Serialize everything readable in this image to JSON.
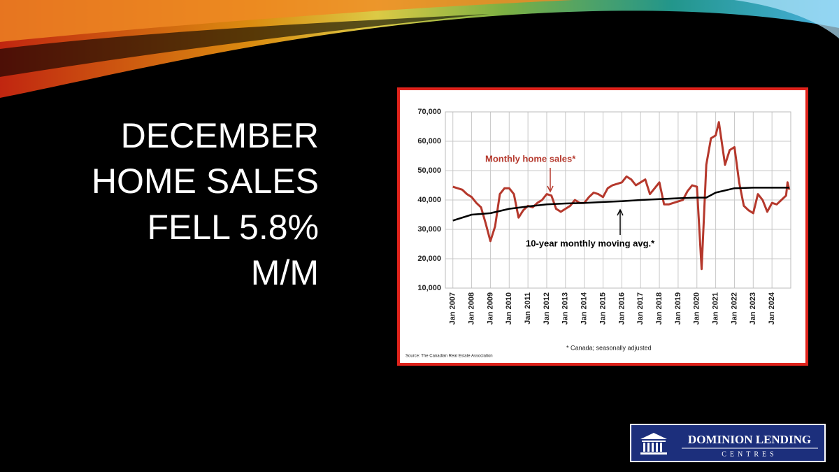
{
  "slide": {
    "title_lines": [
      "DECEMBER",
      "HOME SALES",
      "FELL 5.8%",
      "M/M"
    ]
  },
  "logo": {
    "line1": "DOMINION LENDING",
    "line2": "CENTRES"
  },
  "chart_data": {
    "type": "line",
    "source": "Source: The Canadian Real Estate Association",
    "footnote": "* Canada; seasonally adjusted",
    "annotations": [
      {
        "text": "Monthly home sales*"
      },
      {
        "text": "10-year monthly moving avg.*"
      }
    ],
    "grid": true,
    "xlim": [
      2006.6,
      2025.0
    ],
    "ylim": [
      10000,
      70000
    ],
    "yticks": [
      {
        "value": 10000,
        "label": "10,000"
      },
      {
        "value": 20000,
        "label": "20,000"
      },
      {
        "value": 30000,
        "label": "30,000"
      },
      {
        "value": 40000,
        "label": "40,000"
      },
      {
        "value": 50000,
        "label": "50,000"
      },
      {
        "value": 60000,
        "label": "60,000"
      },
      {
        "value": 70000,
        "label": "70,000"
      }
    ],
    "xticks": [
      {
        "value": 2007,
        "label": "Jan 2007"
      },
      {
        "value": 2008,
        "label": "Jan 2008"
      },
      {
        "value": 2009,
        "label": "Jan 2009"
      },
      {
        "value": 2010,
        "label": "Jan 2010"
      },
      {
        "value": 2011,
        "label": "Jan 2011"
      },
      {
        "value": 2012,
        "label": "Jan 2012"
      },
      {
        "value": 2013,
        "label": "Jan 2013"
      },
      {
        "value": 2014,
        "label": "Jan 2014"
      },
      {
        "value": 2015,
        "label": "Jan 2015"
      },
      {
        "value": 2016,
        "label": "Jan 2016"
      },
      {
        "value": 2017,
        "label": "Jan 2017"
      },
      {
        "value": 2018,
        "label": "Jan 2018"
      },
      {
        "value": 2019,
        "label": "Jan 2019"
      },
      {
        "value": 2020,
        "label": "Jan 2020"
      },
      {
        "value": 2021,
        "label": "Jan 2021"
      },
      {
        "value": 2022,
        "label": "Jan 2022"
      },
      {
        "value": 2023,
        "label": "Jan 2023"
      },
      {
        "value": 2024,
        "label": "Jan 2024"
      }
    ],
    "series": [
      {
        "color": "#b5382c",
        "width": 3,
        "x": [
          2007.0,
          2007.25,
          2007.5,
          2007.75,
          2008.0,
          2008.25,
          2008.5,
          2008.75,
          2009.0,
          2009.25,
          2009.5,
          2009.75,
          2010.0,
          2010.25,
          2010.5,
          2010.75,
          2011.0,
          2011.25,
          2011.5,
          2011.75,
          2012.0,
          2012.25,
          2012.5,
          2012.75,
          2013.0,
          2013.25,
          2013.5,
          2013.75,
          2014.0,
          2014.25,
          2014.5,
          2014.75,
          2015.0,
          2015.25,
          2015.5,
          2015.75,
          2016.0,
          2016.25,
          2016.5,
          2016.75,
          2017.0,
          2017.25,
          2017.5,
          2017.75,
          2018.0,
          2018.25,
          2018.5,
          2018.75,
          2019.0,
          2019.25,
          2019.5,
          2019.75,
          2020.0,
          2020.25,
          2020.5,
          2020.75,
          2021.0,
          2021.17,
          2021.5,
          2021.75,
          2022.0,
          2022.25,
          2022.5,
          2022.75,
          2023.0,
          2023.25,
          2023.5,
          2023.75,
          2024.0,
          2024.25,
          2024.5,
          2024.75,
          2024.83,
          2024.92
        ],
        "values": [
          44500,
          44000,
          43500,
          42000,
          41000,
          39000,
          37500,
          32000,
          26000,
          31000,
          42000,
          44000,
          44000,
          42000,
          34000,
          36500,
          38000,
          37500,
          39000,
          40000,
          42000,
          41500,
          37000,
          36000,
          37000,
          38000,
          40000,
          39000,
          39000,
          41000,
          42500,
          42000,
          41000,
          44000,
          45000,
          45500,
          46000,
          48000,
          47000,
          45000,
          46000,
          47000,
          42000,
          44000,
          46000,
          38500,
          38500,
          39000,
          39500,
          40000,
          43000,
          45000,
          44500,
          16500,
          52000,
          61000,
          62000,
          66500,
          52000,
          57000,
          58000,
          46000,
          38000,
          36500,
          35500,
          42000,
          40000,
          36000,
          39000,
          38500,
          40000,
          41500,
          46000,
          43500
        ]
      },
      {
        "color": "#000000",
        "width": 2.5,
        "x": [
          2007.0,
          2008.0,
          2009.0,
          2010.0,
          2011.0,
          2012.0,
          2013.0,
          2014.0,
          2015.0,
          2016.0,
          2017.0,
          2018.0,
          2019.0,
          2020.0,
          2020.5,
          2021.0,
          2022.0,
          2023.0,
          2024.0,
          2024.92
        ],
        "values": [
          33000,
          35000,
          35500,
          37000,
          37800,
          38500,
          38800,
          39000,
          39300,
          39600,
          40000,
          40300,
          40600,
          40800,
          40800,
          42500,
          44000,
          44200,
          44200,
          44200
        ]
      }
    ]
  }
}
